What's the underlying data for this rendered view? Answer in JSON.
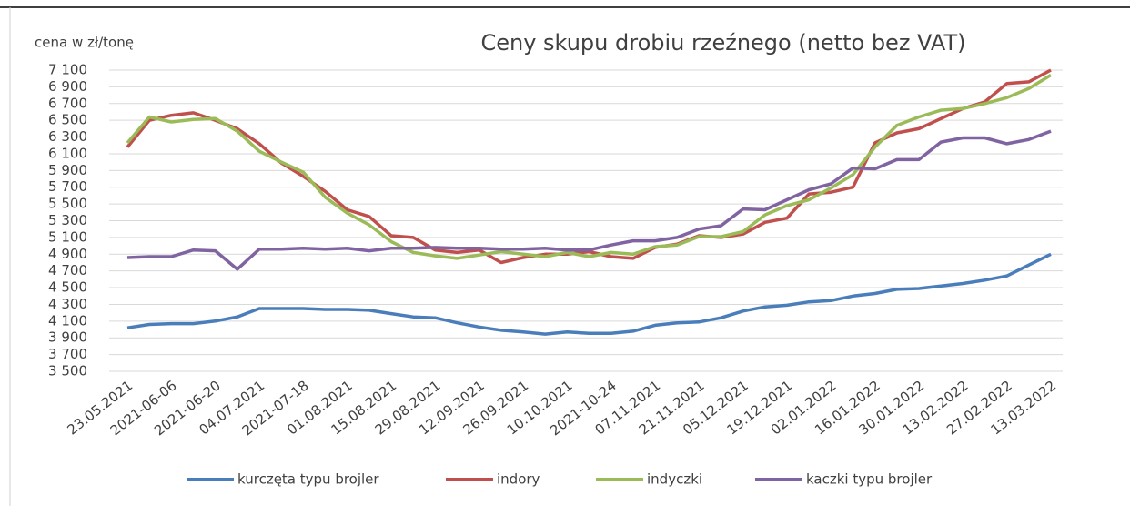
{
  "chart_data": {
    "type": "line",
    "title": "Ceny skupu drobiu rzeźnego (netto bez VAT)",
    "y_label": "cena w zł/tonę",
    "categories": [
      "23.05.2021",
      null,
      "2021-06-06",
      null,
      "2021-06-20",
      null,
      "04.07.2021",
      null,
      "2021-07-18",
      null,
      "01.08.2021",
      null,
      "15.08.2021",
      null,
      "29.08.2021",
      null,
      "12.09.2021",
      null,
      "26.09.2021",
      null,
      "10.10.2021",
      null,
      "2021-10-24",
      null,
      "07.11.2021",
      null,
      "21.11.2021",
      null,
      "05.12.2021",
      null,
      "19.12.2021",
      null,
      "02.01.2022",
      null,
      "16.01.2022",
      null,
      "30.01.2022",
      null,
      "13.02.2022",
      null,
      "27.02.2022",
      null,
      "13.03.2022"
    ],
    "series": [
      {
        "name": "kurczęta typu brojler",
        "color": "#4a7ebb",
        "values": [
          4020,
          4060,
          4070,
          4070,
          4100,
          4150,
          4250,
          4250,
          4250,
          4240,
          4240,
          4230,
          4190,
          4150,
          4140,
          4080,
          4030,
          3990,
          3970,
          3945,
          3970,
          3955,
          3955,
          3980,
          4050,
          4080,
          4090,
          4140,
          4220,
          4270,
          4290,
          4330,
          4345,
          4400,
          4430,
          4480,
          4490,
          4520,
          4550,
          4590,
          4640,
          4770,
          4900
        ]
      },
      {
        "name": "indory",
        "color": "#c0504d",
        "values": [
          6180,
          6500,
          6560,
          6590,
          6500,
          6400,
          6220,
          5990,
          5830,
          5650,
          5430,
          5350,
          5120,
          5100,
          4950,
          4920,
          4950,
          4800,
          4860,
          4900,
          4900,
          4930,
          4870,
          4850,
          4980,
          5020,
          5120,
          5100,
          5140,
          5280,
          5330,
          5620,
          5640,
          5700,
          6230,
          6350,
          6400,
          6520,
          6640,
          6720,
          6940,
          6960,
          7100
        ]
      },
      {
        "name": "indyczki",
        "color": "#9bbb59",
        "values": [
          6230,
          6540,
          6480,
          6510,
          6520,
          6370,
          6130,
          6000,
          5880,
          5580,
          5390,
          5250,
          5050,
          4920,
          4880,
          4850,
          4890,
          4930,
          4900,
          4870,
          4920,
          4870,
          4920,
          4900,
          4990,
          5010,
          5110,
          5110,
          5170,
          5370,
          5480,
          5550,
          5690,
          5850,
          6180,
          6440,
          6540,
          6620,
          6640,
          6700,
          6770,
          6880,
          7040
        ]
      },
      {
        "name": "kaczki typu brojler",
        "color": "#8064a2",
        "values": [
          4860,
          4870,
          4870,
          4950,
          4940,
          4720,
          4960,
          4960,
          4970,
          4960,
          4970,
          4940,
          4970,
          4970,
          4980,
          4970,
          4970,
          4960,
          4960,
          4970,
          4950,
          4950,
          5010,
          5060,
          5060,
          5100,
          5200,
          5240,
          5440,
          5430,
          5550,
          5670,
          5740,
          5930,
          5920,
          6030,
          6030,
          6240,
          6290,
          6290,
          6220,
          6270,
          6370
        ]
      }
    ],
    "ylim": [
      3500,
      7100
    ],
    "yticks": [
      {
        "value": 3500,
        "label": "3 500"
      },
      {
        "value": 3700,
        "label": "3 700"
      },
      {
        "value": 3900,
        "label": "3 900"
      },
      {
        "value": 4100,
        "label": "4 100"
      },
      {
        "value": 4300,
        "label": "4 300"
      },
      {
        "value": 4500,
        "label": "4 500"
      },
      {
        "value": 4700,
        "label": "4 700"
      },
      {
        "value": 4900,
        "label": "4 900"
      },
      {
        "value": 5100,
        "label": "5 100"
      },
      {
        "value": 5300,
        "label": "5 300"
      },
      {
        "value": 5500,
        "label": "5 500"
      },
      {
        "value": 5700,
        "label": "5 700"
      },
      {
        "value": 5900,
        "label": "5 900"
      },
      {
        "value": 6100,
        "label": "6 100"
      },
      {
        "value": 6300,
        "label": "6 300"
      },
      {
        "value": 6500,
        "label": "6 500"
      },
      {
        "value": 6700,
        "label": "6 700"
      },
      {
        "value": 6900,
        "label": "6 900"
      },
      {
        "value": 7100,
        "label": "7 100"
      }
    ],
    "grid": true,
    "legend": "bottom"
  }
}
